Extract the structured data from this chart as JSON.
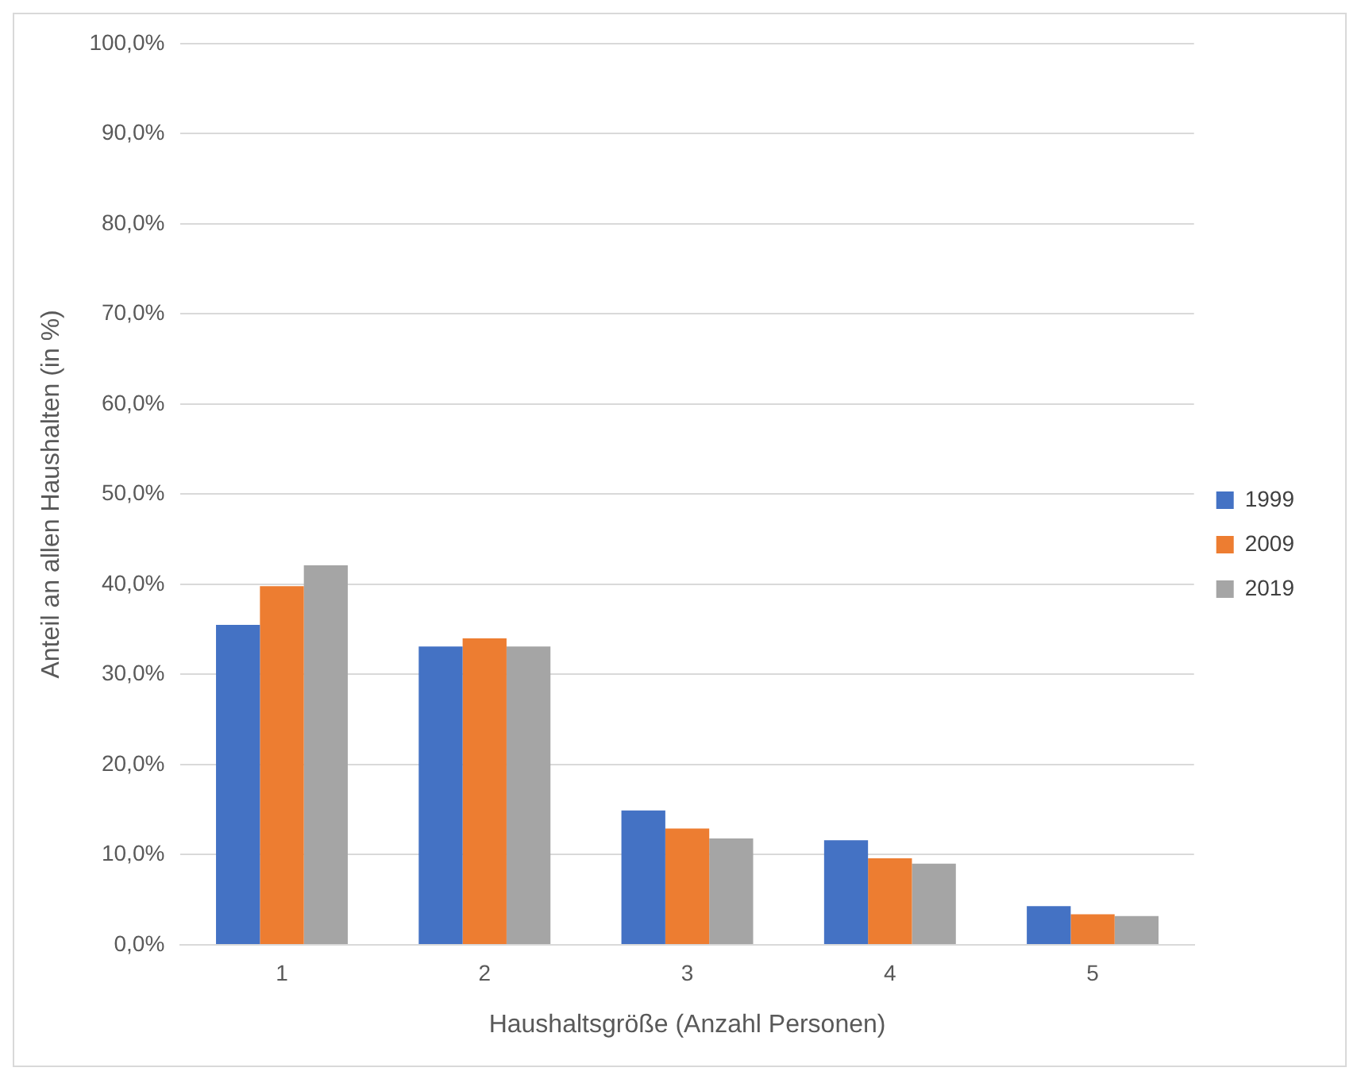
{
  "chart_data": {
    "type": "bar",
    "xlabel": "Haushaltsgröße (Anzahl Personen)",
    "ylabel": "Anteil an allen Haushalten (in %)",
    "categories": [
      "1",
      "2",
      "3",
      "4",
      "5"
    ],
    "series": [
      {
        "name": "1999",
        "color": "#4472c4",
        "values": [
          35.5,
          33.1,
          14.9,
          11.6,
          4.3
        ]
      },
      {
        "name": "2009",
        "color": "#ed7d31",
        "values": [
          39.8,
          34.0,
          12.9,
          9.6,
          3.4
        ]
      },
      {
        "name": "2019",
        "color": "#a5a5a5",
        "values": [
          42.1,
          33.1,
          11.8,
          9.0,
          3.2
        ]
      }
    ],
    "ylim": [
      0,
      100
    ],
    "yticks": [
      {
        "value": 0,
        "label": "0,0%"
      },
      {
        "value": 10,
        "label": "10,0%"
      },
      {
        "value": 20,
        "label": "20,0%"
      },
      {
        "value": 30,
        "label": "30,0%"
      },
      {
        "value": 40,
        "label": "40,0%"
      },
      {
        "value": 50,
        "label": "50,0%"
      },
      {
        "value": 60,
        "label": "60,0%"
      },
      {
        "value": 70,
        "label": "70,0%"
      },
      {
        "value": 80,
        "label": "80,0%"
      },
      {
        "value": 90,
        "label": "90,0%"
      },
      {
        "value": 100,
        "label": "100,0%"
      }
    ],
    "grid": "y",
    "legend": "right"
  }
}
